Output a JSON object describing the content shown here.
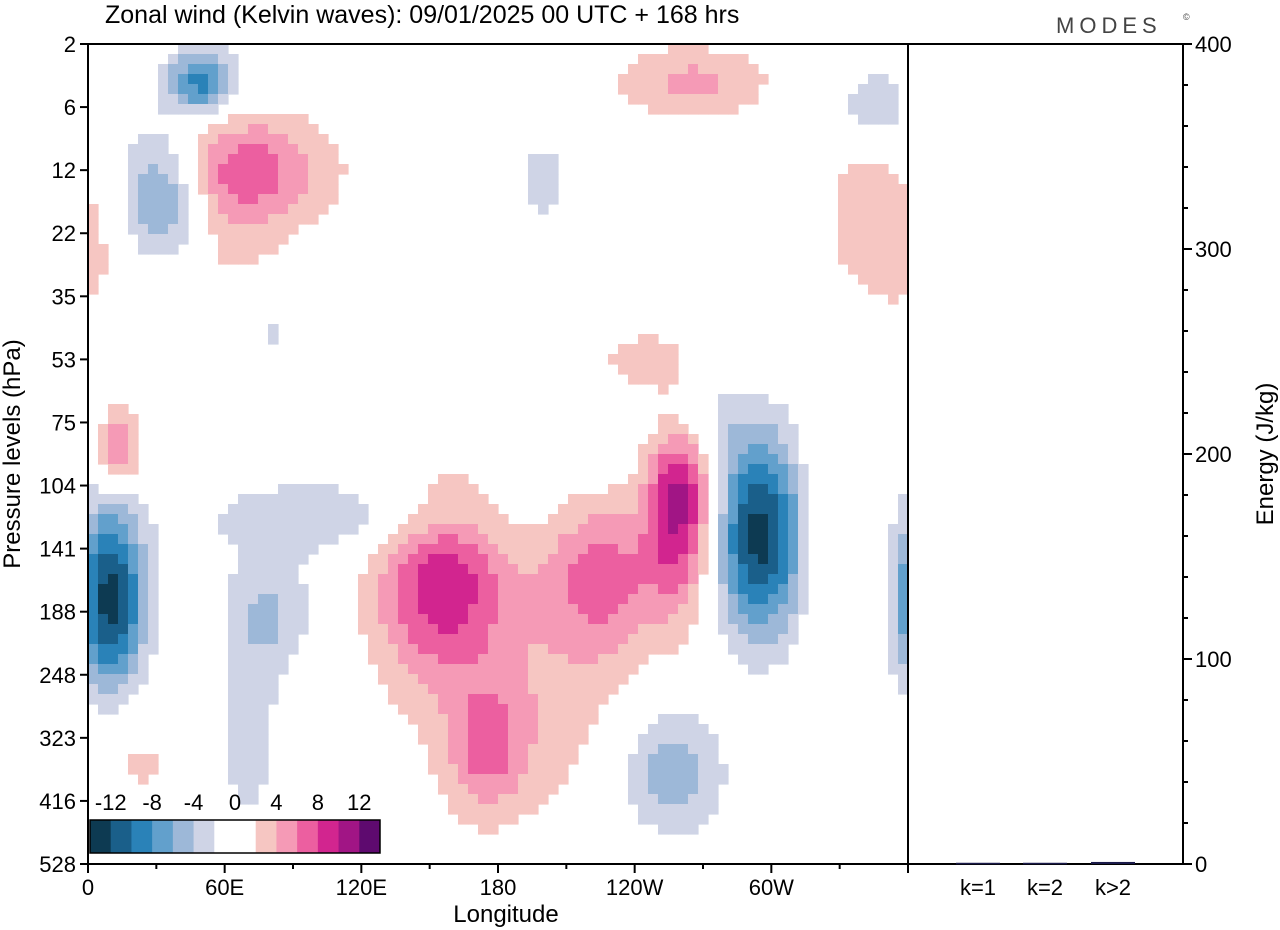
{
  "figure": {
    "title": "Zonal wind (Kelvin waves):  09/01/2025  00 UTC  + 168 hrs",
    "logo_text": "MODES",
    "logo_mark": "©"
  },
  "chart_data": [
    {
      "type": "heatmap",
      "title": "Zonal wind (Kelvin waves):  09/01/2025  00 UTC  + 168 hrs",
      "xlabel": "Longitude",
      "ylabel": "Pressure levels (hPa)",
      "x_ticks": [
        "0",
        "60E",
        "120E",
        "180",
        "120W",
        "60W"
      ],
      "x_tick_degrees": [
        0,
        60,
        120,
        180,
        240,
        300
      ],
      "xlim": [
        0,
        360
      ],
      "y_ticks": [
        "2",
        "6",
        "12",
        "22",
        "35",
        "53",
        "75",
        "104",
        "141",
        "188",
        "248",
        "323",
        "416",
        "528"
      ],
      "y_scale": "level-index (top = 2 hPa, bottom = 528 hPa)",
      "colorbar": {
        "labels": [
          "-12",
          "-8",
          "-4",
          "0",
          "4",
          "8",
          "12"
        ],
        "levels": [
          -14,
          -12,
          -10,
          -8,
          -6,
          -4,
          -2,
          0,
          2,
          4,
          6,
          8,
          10,
          12,
          14
        ],
        "colors": [
          "#0d3a52",
          "#1a5f8a",
          "#2a82b8",
          "#62a0cc",
          "#9db8d8",
          "#cfd4e6",
          "#ffffff",
          "#ffffff",
          "#f6c6c2",
          "#f59ab6",
          "#ec5fa0",
          "#d2258f",
          "#a11585",
          "#5e0a6f"
        ]
      },
      "blobs": [
        {
          "lon": 66,
          "level": 2.0,
          "lon_w": 80,
          "lev_w": 1.8,
          "value": 7.5
        },
        {
          "lon": 34,
          "level": 2.4,
          "lon_w": 35,
          "lev_w": 2.0,
          "value": -6
        },
        {
          "lon": 50,
          "level": 0.6,
          "lon_w": 30,
          "lev_w": 1.0,
          "value": -9
        },
        {
          "lon": 30,
          "level": 2.2,
          "lon_w": 50,
          "lev_w": 2.6,
          "value": -3
        },
        {
          "lon": 0,
          "level": 3.2,
          "lon_w": 40,
          "lev_w": 2.2,
          "value": 2.5
        },
        {
          "lon": 60,
          "level": 3.5,
          "lon_w": 60,
          "lev_w": 2.0,
          "value": 2.2
        },
        {
          "lon": 80,
          "level": 4.5,
          "lon_w": 50,
          "lev_w": 1.5,
          "value": -2.5
        },
        {
          "lon": 10,
          "level": 8.8,
          "lon_w": 30,
          "lev_w": 3.0,
          "value": -13
        },
        {
          "lon": 14,
          "level": 6.4,
          "lon_w": 20,
          "lev_w": 1.3,
          "value": 6.5
        },
        {
          "lon": 110,
          "level": 7.5,
          "lon_w": 120,
          "lev_w": 1.2,
          "value": -4
        },
        {
          "lon": 80,
          "level": 9.0,
          "lon_w": 40,
          "lev_w": 2.0,
          "value": -4
        },
        {
          "lon": 70,
          "level": 11.0,
          "lon_w": 30,
          "lev_w": 3.5,
          "value": -3
        },
        {
          "lon": 155,
          "level": 8.5,
          "lon_w": 60,
          "lev_w": 3.0,
          "value": 9
        },
        {
          "lon": 225,
          "level": 8.4,
          "lon_w": 50,
          "lev_w": 2.4,
          "value": 6.5
        },
        {
          "lon": 260,
          "level": 7.2,
          "lon_w": 30,
          "lev_w": 3.2,
          "value": 11
        },
        {
          "lon": 295,
          "level": 7.8,
          "lon_w": 40,
          "lev_w": 3.2,
          "value": -13
        },
        {
          "lon": 255,
          "level": 11.5,
          "lon_w": 50,
          "lev_w": 2.4,
          "value": -6
        },
        {
          "lon": 175,
          "level": 11.2,
          "lon_w": 35,
          "lev_w": 2.0,
          "value": 5
        },
        {
          "lon": 200,
          "level": 10.5,
          "lon_w": 120,
          "lev_w": 4.0,
          "value": 3
        },
        {
          "lon": 240,
          "level": 13.2,
          "lon_w": 40,
          "lev_w": 1.2,
          "value": 3
        },
        {
          "lon": 325,
          "level": 7.5,
          "lon_w": 25,
          "lev_w": 4.0,
          "value": 3
        },
        {
          "lon": 340,
          "level": 2.5,
          "lon_w": 45,
          "lev_w": 3.5,
          "value": 2.5
        },
        {
          "lon": 345,
          "level": 1.0,
          "lon_w": 30,
          "lev_w": 1.2,
          "value": -5
        },
        {
          "lon": 265,
          "level": 0.6,
          "lon_w": 70,
          "lev_w": 1.2,
          "value": 4.5
        },
        {
          "lon": 265,
          "level": 6.0,
          "lon_w": 40,
          "lev_w": 1.4,
          "value": -4
        },
        {
          "lon": 20,
          "level": 11.3,
          "lon_w": 50,
          "lev_w": 2.0,
          "value": 2.5
        },
        {
          "lon": 200,
          "level": 2.2,
          "lon_w": 25,
          "lev_w": 1.5,
          "value": -3
        },
        {
          "lon": 240,
          "level": 5.0,
          "lon_w": 40,
          "lev_w": 1.2,
          "value": 2.5
        }
      ]
    },
    {
      "type": "bar",
      "ylabel": "Energy (J/kg)",
      "categories": [
        "k=1",
        "k=2",
        "k>2"
      ],
      "values": [
        0.6,
        0.6,
        1.0
      ],
      "ylim": [
        0,
        400
      ],
      "y_ticks": [
        "0",
        "100",
        "200",
        "300",
        "400"
      ],
      "bar_color": "#1a1a4a"
    }
  ]
}
